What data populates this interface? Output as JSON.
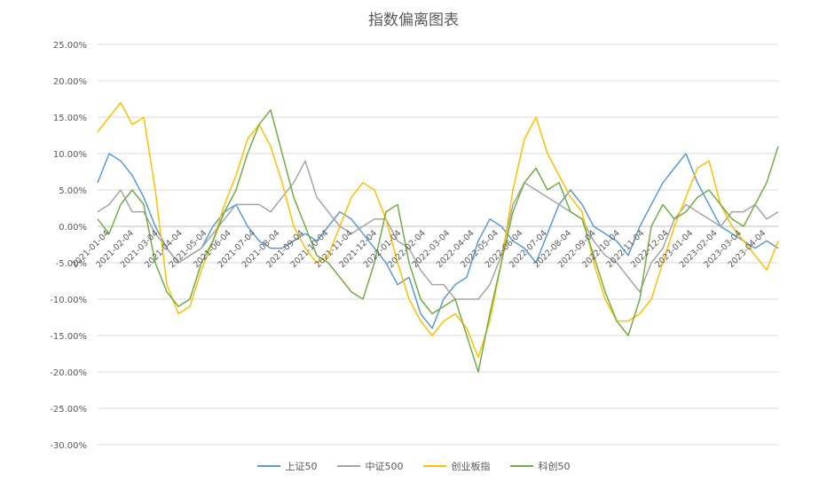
{
  "chart_data": {
    "type": "line",
    "title": "指数偏离图表",
    "xlabel": "",
    "ylabel": "",
    "ylim": [
      -0.3,
      0.25
    ],
    "grid": true,
    "legend_position": "bottom",
    "y_ticks": [
      "25.00%",
      "20.00%",
      "15.00%",
      "10.00%",
      "5.00%",
      "0.00%",
      "-5.00%",
      "-10.00%",
      "-15.00%",
      "-20.00%",
      "-25.00%",
      "-30.00%"
    ],
    "x_ticks": [
      "2021-01-04",
      "2021-02-04",
      "2021-03-04",
      "2021-04-04",
      "2021-05-04",
      "2021-06-04",
      "2021-07-04",
      "2021-08-04",
      "2021-09-04",
      "2021-10-04",
      "2021-11-04",
      "2021-12-04",
      "2022-01-04",
      "2022-02-04",
      "2022-03-04",
      "2022-04-04",
      "2022-05-04",
      "2022-06-04",
      "2022-07-04",
      "2022-08-04",
      "2022-09-04",
      "2022-10-04",
      "2022-11-04",
      "2022-12-04",
      "2023-01-04",
      "2023-02-04",
      "2023-03-04",
      "2023-04-04"
    ],
    "series": [
      {
        "name": "上证50",
        "color": "#5b9bd5",
        "values": [
          0.06,
          0.1,
          0.09,
          0.07,
          0.04,
          0.0,
          -0.03,
          -0.05,
          -0.04,
          -0.03,
          0.0,
          0.02,
          0.03,
          0.0,
          -0.02,
          -0.03,
          -0.03,
          -0.02,
          -0.01,
          -0.02,
          0.0,
          0.02,
          0.01,
          -0.01,
          -0.03,
          -0.05,
          -0.08,
          -0.07,
          -0.12,
          -0.14,
          -0.1,
          -0.08,
          -0.07,
          -0.02,
          0.01,
          0.0,
          -0.02,
          -0.03,
          -0.05,
          -0.01,
          0.03,
          0.05,
          0.03,
          0.0,
          -0.01,
          -0.02,
          -0.04,
          0.0,
          0.03,
          0.06,
          0.08,
          0.1,
          0.06,
          0.03,
          0.0,
          -0.01,
          -0.02,
          -0.03,
          -0.02,
          -0.03
        ]
      },
      {
        "name": "中证500",
        "color": "#a5a5a5",
        "values": [
          0.02,
          0.03,
          0.05,
          0.02,
          0.02,
          -0.01,
          -0.03,
          -0.05,
          -0.04,
          -0.03,
          -0.01,
          0.01,
          0.03,
          0.03,
          0.03,
          0.02,
          0.04,
          0.06,
          0.09,
          0.04,
          0.02,
          0.0,
          -0.01,
          0.0,
          0.01,
          0.01,
          -0.02,
          -0.03,
          -0.06,
          -0.08,
          -0.08,
          -0.1,
          -0.1,
          -0.1,
          -0.08,
          -0.04,
          0.03,
          0.06,
          0.05,
          0.04,
          0.03,
          0.02,
          0.01,
          -0.02,
          -0.04,
          -0.05,
          -0.07,
          -0.09,
          -0.05,
          -0.03,
          0.01,
          0.03,
          0.02,
          0.01,
          0.0,
          0.02,
          0.02,
          0.03,
          0.01,
          0.02
        ]
      },
      {
        "name": "创业板指",
        "color": "#ffc000",
        "values": [
          0.13,
          0.15,
          0.17,
          0.14,
          0.15,
          0.05,
          -0.08,
          -0.12,
          -0.11,
          -0.06,
          -0.02,
          0.03,
          0.07,
          0.12,
          0.14,
          0.11,
          0.06,
          0.0,
          -0.03,
          -0.05,
          -0.04,
          0.0,
          0.04,
          0.06,
          0.05,
          0.01,
          -0.05,
          -0.1,
          -0.13,
          -0.15,
          -0.13,
          -0.12,
          -0.14,
          -0.18,
          -0.13,
          -0.05,
          0.05,
          0.12,
          0.15,
          0.1,
          0.07,
          0.04,
          0.02,
          -0.05,
          -0.1,
          -0.13,
          -0.13,
          -0.12,
          -0.1,
          -0.05,
          0.0,
          0.04,
          0.08,
          0.09,
          0.03,
          0.0,
          -0.02,
          -0.04,
          -0.06,
          -0.02
        ]
      },
      {
        "name": "科创50",
        "color": "#70ad47",
        "values": [
          0.01,
          -0.01,
          0.03,
          0.05,
          0.03,
          -0.05,
          -0.09,
          -0.11,
          -0.1,
          -0.05,
          -0.02,
          0.02,
          0.05,
          0.1,
          0.14,
          0.16,
          0.1,
          0.04,
          0.0,
          -0.04,
          -0.05,
          -0.07,
          -0.09,
          -0.1,
          -0.05,
          0.02,
          0.03,
          -0.05,
          -0.1,
          -0.12,
          -0.11,
          -0.1,
          -0.15,
          -0.2,
          -0.12,
          -0.05,
          0.02,
          0.06,
          0.08,
          0.05,
          0.06,
          0.02,
          0.01,
          -0.04,
          -0.09,
          -0.13,
          -0.15,
          -0.1,
          0.0,
          0.03,
          0.01,
          0.02,
          0.04,
          0.05,
          0.03,
          0.01,
          0.0,
          0.03,
          0.06,
          0.11
        ]
      }
    ]
  }
}
